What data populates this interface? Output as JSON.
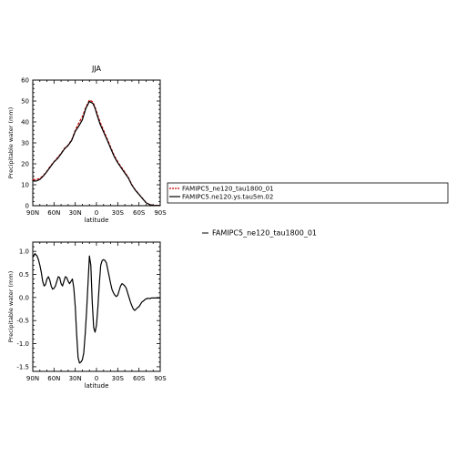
{
  "chart_data": [
    {
      "type": "line",
      "title": "JJA",
      "xlabel": "latitude",
      "ylabel": "Precipitable water (mm)",
      "xticks": [
        "90N",
        "60N",
        "30N",
        "0",
        "30S",
        "60S",
        "90S"
      ],
      "yticks": [
        "0",
        "10",
        "20",
        "30",
        "40",
        "50",
        "60"
      ],
      "xlim": [
        90,
        -90
      ],
      "ylim": [
        0,
        60
      ],
      "legend_position": "right",
      "series": [
        {
          "name": "FAMIPC5_ne120_tau1800_01",
          "color": "#cc0000",
          "dash": "dashed",
          "x": [
            90,
            85,
            80,
            75,
            70,
            65,
            60,
            55,
            50,
            45,
            40,
            35,
            30,
            25,
            20,
            15,
            10,
            5,
            2,
            0,
            -5,
            -10,
            -15,
            -20,
            -25,
            -30,
            -35,
            -40,
            -45,
            -50,
            -55,
            -60,
            -65,
            -70,
            -75,
            -80,
            -85,
            -90
          ],
          "values": [
            12.5,
            12.5,
            13.0,
            14.5,
            16.5,
            19.0,
            21.0,
            23.0,
            25.0,
            27.5,
            29.0,
            31.5,
            36.0,
            39.5,
            42.5,
            47.0,
            50.5,
            49.5,
            47.0,
            45.0,
            40.0,
            36.0,
            32.0,
            28.0,
            24.0,
            21.0,
            18.5,
            16.0,
            13.5,
            10.0,
            7.5,
            5.5,
            3.5,
            1.5,
            0.6,
            0.2,
            0.1,
            0.1
          ]
        },
        {
          "name": "FAMIPC5.ne120.ys.tau5m.02",
          "color": "#000000",
          "dash": "solid",
          "x": [
            90,
            85,
            80,
            75,
            70,
            65,
            60,
            55,
            50,
            45,
            40,
            35,
            30,
            25,
            20,
            15,
            10,
            5,
            2,
            0,
            -5,
            -10,
            -15,
            -20,
            -25,
            -30,
            -35,
            -40,
            -45,
            -50,
            -55,
            -60,
            -65,
            -70,
            -75,
            -80,
            -85,
            -90
          ],
          "values": [
            11.8,
            11.8,
            12.5,
            14.2,
            16.3,
            18.6,
            20.9,
            22.5,
            24.8,
            27.2,
            28.8,
            31.2,
            35.5,
            38.0,
            41.0,
            46.5,
            49.8,
            48.8,
            46.5,
            44.2,
            39.0,
            35.2,
            31.4,
            27.4,
            23.5,
            20.5,
            18.0,
            15.6,
            13.2,
            9.8,
            7.3,
            5.4,
            3.4,
            1.4,
            0.5,
            0.2,
            0.1,
            0.1
          ]
        }
      ]
    },
    {
      "type": "line",
      "title": "",
      "xlabel": "latitude",
      "ylabel": "Precipitable water (mm)",
      "xticks": [
        "90N",
        "60N",
        "30N",
        "0",
        "30S",
        "60S",
        "90S"
      ],
      "yticks": [
        "-1.5",
        "-1.0",
        "-0.5",
        "0.0",
        "0.5",
        "1.0"
      ],
      "xlim": [
        90,
        -90
      ],
      "ylim": [
        -1.6,
        1.2
      ],
      "legend_position": "right",
      "legend_text": "FAMIPC5_ne120_tau1800_01",
      "series": [
        {
          "name": "FAMIPC5_ne120_tau1800_01",
          "color": "#000000",
          "dash": "solid",
          "x": [
            90,
            87,
            84,
            82,
            80,
            78,
            76,
            74,
            72,
            70,
            68,
            66,
            64,
            62,
            60,
            58,
            56,
            54,
            52,
            50,
            48,
            46,
            44,
            42,
            40,
            38,
            36,
            34,
            32,
            30,
            28,
            26,
            24,
            22,
            20,
            18,
            16,
            14,
            12,
            10,
            8,
            6,
            4,
            2,
            0,
            -2,
            -4,
            -6,
            -8,
            -10,
            -12,
            -14,
            -16,
            -18,
            -20,
            -22,
            -24,
            -26,
            -28,
            -30,
            -32,
            -34,
            -36,
            -38,
            -40,
            -42,
            -44,
            -46,
            -48,
            -50,
            -52,
            -54,
            -56,
            -58,
            -60,
            -62,
            -64,
            -66,
            -68,
            -70,
            -72,
            -74,
            -76,
            -78,
            -80,
            -82,
            -84,
            -86,
            -88,
            -90
          ],
          "values": [
            0.87,
            0.95,
            0.9,
            0.82,
            0.7,
            0.55,
            0.35,
            0.25,
            0.28,
            0.4,
            0.45,
            0.38,
            0.25,
            0.18,
            0.2,
            0.25,
            0.35,
            0.45,
            0.43,
            0.3,
            0.25,
            0.35,
            0.45,
            0.43,
            0.35,
            0.3,
            0.35,
            0.4,
            0.2,
            -0.2,
            -0.8,
            -1.3,
            -1.42,
            -1.4,
            -1.35,
            -1.2,
            -0.8,
            -0.3,
            0.3,
            0.9,
            0.7,
            -0.1,
            -0.65,
            -0.75,
            -0.6,
            -0.2,
            0.3,
            0.7,
            0.8,
            0.82,
            0.8,
            0.75,
            0.6,
            0.45,
            0.3,
            0.17,
            0.1,
            0.05,
            0.02,
            0.05,
            0.15,
            0.25,
            0.3,
            0.28,
            0.25,
            0.2,
            0.1,
            0.0,
            -0.1,
            -0.18,
            -0.25,
            -0.28,
            -0.25,
            -0.22,
            -0.2,
            -0.15,
            -0.1,
            -0.08,
            -0.05,
            -0.03,
            -0.02,
            -0.02,
            -0.02,
            -0.01,
            -0.01,
            -0.01,
            -0.01,
            -0.01,
            -0.01,
            -0.01
          ]
        }
      ]
    }
  ]
}
